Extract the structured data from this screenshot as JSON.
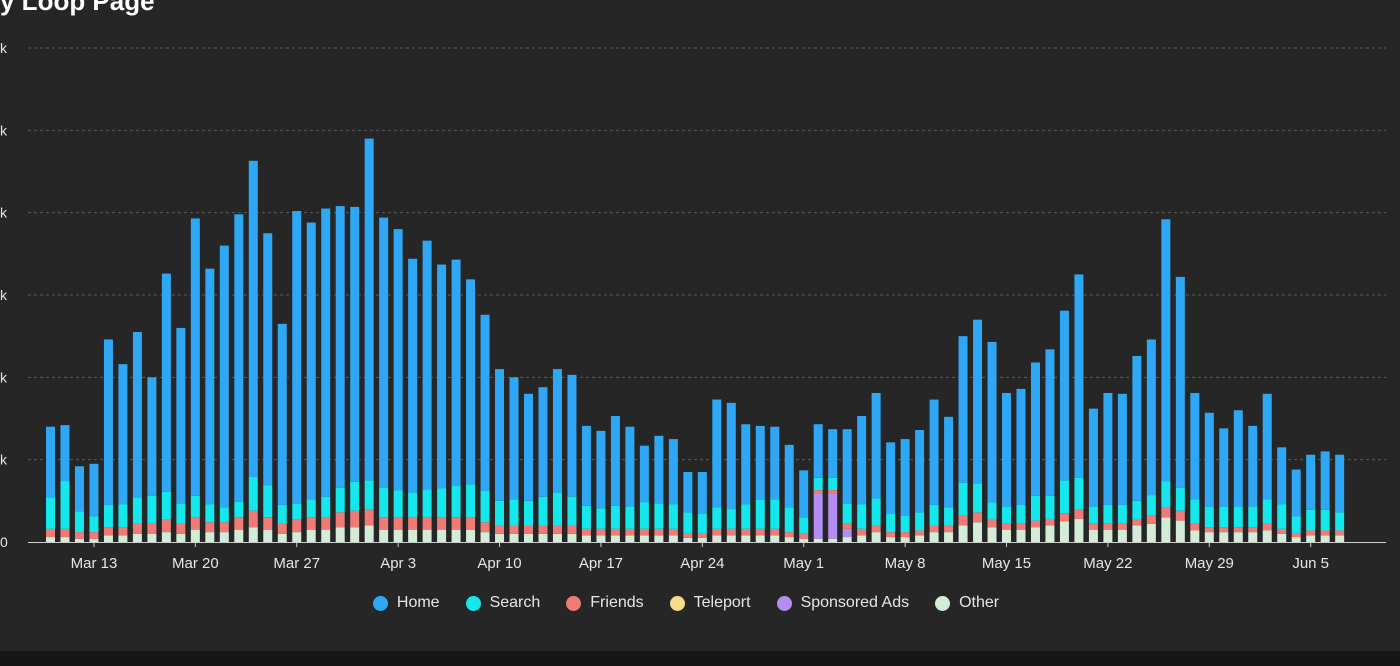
{
  "chart_data": {
    "type": "bar",
    "stacked": true,
    "title": "y Loop Page",
    "y_tick_labels": [
      "0",
      "k",
      "k",
      "k",
      "k",
      "k",
      "k"
    ],
    "x_tick_labels": [
      "Mar 13",
      "Mar 20",
      "Mar 27",
      "Apr 3",
      "Apr 10",
      "Apr 17",
      "Apr 24",
      "May 1",
      "May 8",
      "May 15",
      "May 22",
      "May 29",
      "Jun 5"
    ],
    "grid": true,
    "legend_position": "bottom",
    "ylim": [
      0,
      6
    ],
    "series": [
      {
        "name": "Home",
        "color": "#2ea8f5"
      },
      {
        "name": "Search",
        "color": "#14e8ec"
      },
      {
        "name": "Friends",
        "color": "#f07a76"
      },
      {
        "name": "Teleport",
        "color": "#f5dc8c"
      },
      {
        "name": "Sponsored Ads",
        "color": "#b28df2"
      },
      {
        "name": "Other",
        "color": "#d2ecd8"
      }
    ],
    "totals": [
      1.4,
      1.42,
      0.92,
      0.95,
      2.46,
      2.16,
      2.55,
      2.0,
      3.26,
      2.6,
      3.93,
      3.32,
      3.6,
      3.98,
      4.63,
      3.75,
      2.65,
      4.02,
      3.88,
      4.05,
      4.08,
      4.07,
      4.9,
      3.94,
      3.8,
      3.44,
      3.66,
      3.37,
      3.43,
      3.19,
      2.76,
      2.1,
      2.0,
      1.8,
      1.88,
      2.1,
      2.03,
      1.41,
      1.35,
      1.53,
      1.4,
      1.17,
      1.29,
      1.25,
      0.85,
      0.85,
      1.73,
      1.69,
      1.43,
      1.41,
      1.4,
      1.18,
      0.87,
      1.43,
      1.37,
      1.37,
      1.53,
      1.81,
      1.21,
      1.25,
      1.36,
      1.73,
      1.52,
      2.5,
      2.7,
      2.43,
      1.81,
      1.86,
      2.18,
      2.34,
      2.81,
      3.25,
      1.62,
      1.81,
      1.8,
      2.26,
      2.46,
      3.92,
      3.22,
      1.81,
      1.57,
      1.38,
      1.6,
      1.41,
      1.8,
      1.15,
      0.88,
      1.06,
      1.1,
      1.06
    ],
    "search": [
      0.38,
      0.58,
      0.25,
      0.19,
      0.27,
      0.28,
      0.32,
      0.34,
      0.34,
      0.25,
      0.26,
      0.22,
      0.18,
      0.19,
      0.41,
      0.39,
      0.23,
      0.2,
      0.22,
      0.25,
      0.3,
      0.35,
      0.35,
      0.36,
      0.33,
      0.3,
      0.34,
      0.35,
      0.38,
      0.4,
      0.38,
      0.3,
      0.32,
      0.3,
      0.35,
      0.4,
      0.35,
      0.28,
      0.25,
      0.28,
      0.27,
      0.32,
      0.31,
      0.3,
      0.25,
      0.23,
      0.26,
      0.24,
      0.3,
      0.35,
      0.36,
      0.3,
      0.2,
      0.15,
      0.15,
      0.25,
      0.3,
      0.33,
      0.22,
      0.2,
      0.22,
      0.25,
      0.22,
      0.4,
      0.35,
      0.2,
      0.2,
      0.22,
      0.3,
      0.28,
      0.4,
      0.38,
      0.2,
      0.22,
      0.22,
      0.22,
      0.25,
      0.32,
      0.28,
      0.3,
      0.25,
      0.25,
      0.25,
      0.25,
      0.3,
      0.3,
      0.2,
      0.25,
      0.25,
      0.22
    ],
    "friends": [
      0.1,
      0.1,
      0.08,
      0.08,
      0.1,
      0.1,
      0.12,
      0.12,
      0.15,
      0.12,
      0.15,
      0.12,
      0.12,
      0.15,
      0.2,
      0.15,
      0.12,
      0.15,
      0.15,
      0.15,
      0.18,
      0.2,
      0.2,
      0.15,
      0.15,
      0.15,
      0.15,
      0.15,
      0.15,
      0.15,
      0.12,
      0.1,
      0.1,
      0.1,
      0.1,
      0.1,
      0.1,
      0.08,
      0.08,
      0.08,
      0.08,
      0.08,
      0.08,
      0.08,
      0.06,
      0.06,
      0.08,
      0.08,
      0.08,
      0.08,
      0.08,
      0.06,
      0.06,
      0.04,
      0.04,
      0.06,
      0.08,
      0.08,
      0.06,
      0.06,
      0.06,
      0.08,
      0.08,
      0.12,
      0.12,
      0.1,
      0.08,
      0.08,
      0.08,
      0.08,
      0.1,
      0.12,
      0.08,
      0.08,
      0.08,
      0.08,
      0.1,
      0.12,
      0.12,
      0.08,
      0.06,
      0.06,
      0.06,
      0.06,
      0.08,
      0.06,
      0.05,
      0.06,
      0.06,
      0.06
    ],
    "teleport": [
      0,
      0,
      0,
      0,
      0,
      0,
      0,
      0,
      0,
      0,
      0,
      0,
      0,
      0,
      0,
      0,
      0,
      0,
      0,
      0,
      0,
      0,
      0,
      0,
      0,
      0,
      0,
      0,
      0,
      0,
      0,
      0,
      0,
      0,
      0,
      0,
      0,
      0,
      0,
      0,
      0,
      0,
      0,
      0,
      0,
      0,
      0,
      0,
      0,
      0,
      0,
      0,
      0,
      0,
      0,
      0,
      0,
      0,
      0,
      0,
      0,
      0,
      0,
      0,
      0,
      0,
      0,
      0,
      0,
      0,
      0,
      0,
      0,
      0,
      0,
      0,
      0,
      0,
      0,
      0,
      0,
      0,
      0,
      0,
      0,
      0,
      0,
      0,
      0,
      0
    ],
    "sponsored_ads": [
      0,
      0,
      0,
      0,
      0,
      0,
      0,
      0,
      0,
      0,
      0,
      0,
      0,
      0,
      0,
      0,
      0,
      0,
      0,
      0,
      0,
      0,
      0,
      0,
      0,
      0,
      0,
      0,
      0,
      0,
      0,
      0,
      0,
      0,
      0,
      0,
      0,
      0,
      0,
      0,
      0,
      0,
      0,
      0,
      0,
      0,
      0,
      0,
      0,
      0,
      0,
      0,
      0,
      0.55,
      0.55,
      0.1,
      0,
      0,
      0,
      0,
      0,
      0,
      0,
      0,
      0,
      0,
      0,
      0,
      0,
      0,
      0,
      0,
      0,
      0,
      0,
      0,
      0,
      0,
      0,
      0,
      0,
      0,
      0,
      0,
      0,
      0,
      0,
      0,
      0,
      0
    ],
    "other": [
      0.06,
      0.06,
      0.04,
      0.04,
      0.08,
      0.08,
      0.1,
      0.1,
      0.12,
      0.1,
      0.15,
      0.12,
      0.12,
      0.15,
      0.18,
      0.15,
      0.1,
      0.12,
      0.15,
      0.15,
      0.18,
      0.18,
      0.2,
      0.15,
      0.15,
      0.15,
      0.15,
      0.15,
      0.15,
      0.15,
      0.12,
      0.1,
      0.1,
      0.1,
      0.1,
      0.1,
      0.1,
      0.08,
      0.08,
      0.08,
      0.08,
      0.08,
      0.08,
      0.08,
      0.05,
      0.05,
      0.08,
      0.08,
      0.08,
      0.08,
      0.08,
      0.06,
      0.04,
      0.04,
      0.04,
      0.06,
      0.08,
      0.12,
      0.06,
      0.06,
      0.08,
      0.12,
      0.12,
      0.2,
      0.24,
      0.18,
      0.15,
      0.15,
      0.18,
      0.2,
      0.25,
      0.28,
      0.15,
      0.15,
      0.15,
      0.2,
      0.22,
      0.3,
      0.26,
      0.14,
      0.12,
      0.12,
      0.12,
      0.12,
      0.14,
      0.1,
      0.06,
      0.08,
      0.08,
      0.08
    ]
  }
}
